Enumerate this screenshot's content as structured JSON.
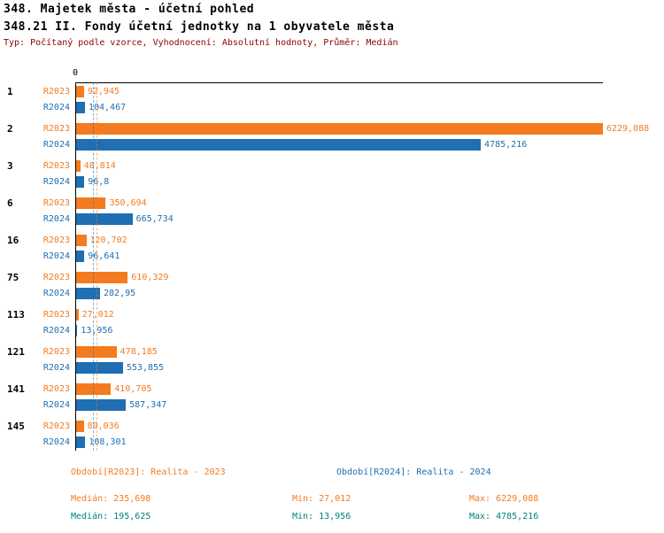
{
  "header": {
    "title": "348. Majetek města - účetní pohled",
    "subtitle": "348.21 II. Fondy účetní jednotky na 1 obyvatele města",
    "meta": "Typ: Počítaný podle vzorce, Vyhodnocení: Absolutní hodnoty, Průměr: Medián"
  },
  "chart_data": {
    "type": "bar",
    "orientation": "horizontal",
    "axis": {
      "zero_label": "0",
      "xlim": [
        0,
        6240
      ],
      "grid": false
    },
    "categories": [
      "1",
      "2",
      "3",
      "6",
      "16",
      "75",
      "113",
      "121",
      "141",
      "145"
    ],
    "series": [
      {
        "name": "R2023",
        "color": "#F47B20",
        "values": [
          92.945,
          6229.088,
          48.814,
          350.694,
          120.702,
          610.329,
          27.012,
          478.185,
          410.705,
          89.036
        ],
        "labels": [
          "92,945",
          "6229,088",
          "48,814",
          "350,694",
          "120,702",
          "610,329",
          "27,012",
          "478,185",
          "410,705",
          "89,036"
        ]
      },
      {
        "name": "R2024",
        "color": "#1F6FB2",
        "values": [
          104.467,
          4785.216,
          96.8,
          665.734,
          96.641,
          282.95,
          13.956,
          553.855,
          587.347,
          108.301
        ],
        "labels": [
          "104,467",
          "4785,216",
          "96,8",
          "665,734",
          "96,641",
          "282,95",
          "13,956",
          "553,855",
          "587,347",
          "108,301"
        ]
      }
    ],
    "medians": [
      {
        "series": "R2023",
        "value": 235.698,
        "color": "#F47B20"
      },
      {
        "series": "R2024",
        "value": 195.625,
        "color": "#1F6FB2"
      }
    ],
    "legend_position": "bottom"
  },
  "legend": {
    "r2023": "Období[R2023]: Realita - 2023",
    "r2024": "Období[R2024]: Realita - 2024"
  },
  "stats": {
    "r2023": {
      "median": "Medián: 235,698",
      "min": "Min: 27,012",
      "max": "Max: 6229,088"
    },
    "r2024": {
      "median": "Medián: 195,625",
      "min": "Min: 13,956",
      "max": "Max: 4785,216"
    }
  },
  "colors": {
    "r2023": "#F47B20",
    "r2024": "#1F6FB2",
    "meta_text": "#8B0000",
    "stats_r2024_text": "#008080",
    "axis": "#000000"
  }
}
